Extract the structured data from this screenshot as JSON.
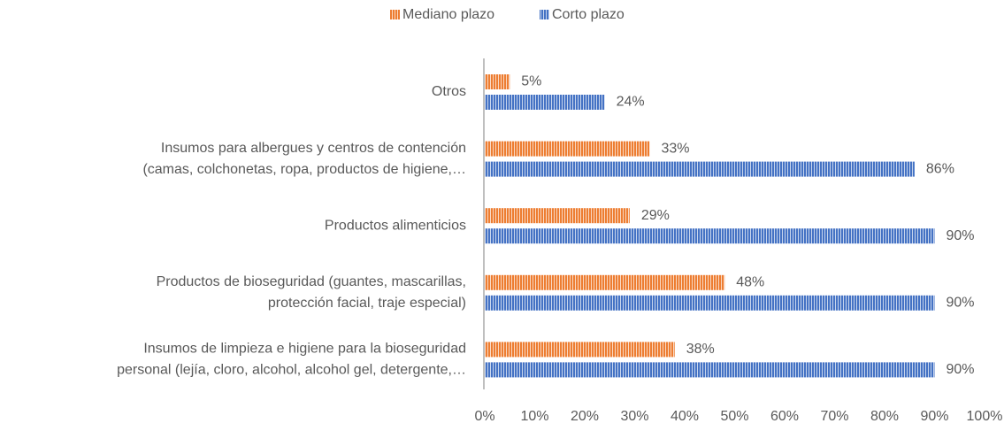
{
  "chart_data": {
    "type": "hbar",
    "categories": [
      [
        "Otros"
      ],
      [
        "Insumos para albergues y centros de contención",
        "(camas, colchonetas, ropa, productos de higiene,…"
      ],
      [
        "Productos alimenticios"
      ],
      [
        "Productos de bioseguridad (guantes, mascarillas,",
        "protección facial, traje especial)"
      ],
      [
        "Insumos de limpieza e higiene para la bioseguridad",
        "personal (lejía, cloro, alcohol, alcohol gel, detergente,…"
      ]
    ],
    "series": [
      {
        "name": "Mediano plazo",
        "color": "#ed7d31",
        "values": [
          5,
          33,
          29,
          48,
          38
        ],
        "value_labels": [
          "5%",
          "33%",
          "29%",
          "48%",
          "38%"
        ]
      },
      {
        "name": "Corto plazo",
        "color": "#4472c4",
        "values": [
          24,
          86,
          90,
          90,
          90
        ],
        "value_labels": [
          "24%",
          "86%",
          "90%",
          "90%",
          "90%"
        ]
      }
    ],
    "xlim": [
      0,
      100
    ],
    "xticks": [
      {
        "value": 0,
        "label": "0%"
      },
      {
        "value": 10,
        "label": "10%"
      },
      {
        "value": 20,
        "label": "20%"
      },
      {
        "value": 30,
        "label": "30%"
      },
      {
        "value": 40,
        "label": "40%"
      },
      {
        "value": 50,
        "label": "50%"
      },
      {
        "value": 60,
        "label": "60%"
      },
      {
        "value": 70,
        "label": "70%"
      },
      {
        "value": 80,
        "label": "80%"
      },
      {
        "value": 90,
        "label": "90%"
      },
      {
        "value": 100,
        "label": "100%"
      }
    ],
    "legend": "top"
  }
}
